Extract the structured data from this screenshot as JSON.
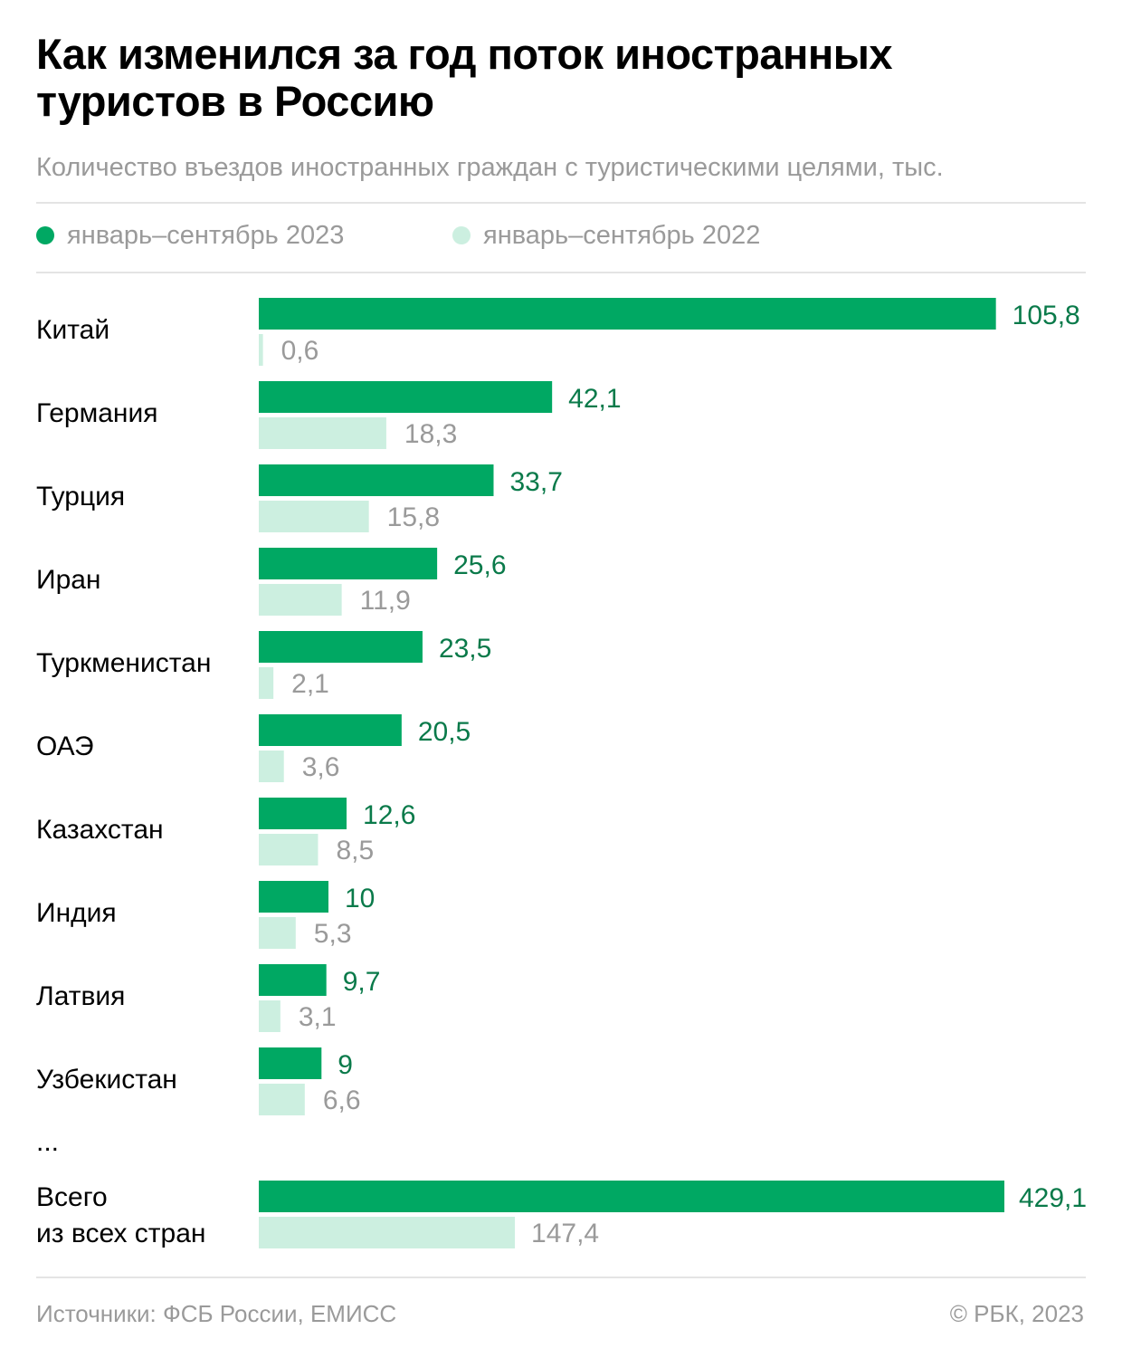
{
  "header": {
    "title": "Как изменился за год поток иностранных туристов в Россию",
    "subtitle": "Количество въездов иностранных граждан с туристическими целями, тыс."
  },
  "legend": {
    "items": [
      {
        "label": "январь–сентябрь 2023",
        "color": "#00a863"
      },
      {
        "label": "январь–сентябрь 2022",
        "color": "#ccefe0"
      }
    ]
  },
  "chart_data": {
    "type": "bar",
    "orientation": "horizontal",
    "categories": [
      "Китай",
      "Германия",
      "Турция",
      "Иран",
      "Туркменистан",
      "ОАЭ",
      "Казахстан",
      "Индия",
      "Латвия",
      "Узбекистан"
    ],
    "series": [
      {
        "name": "январь–сентябрь 2023",
        "values": [
          105.8,
          42.1,
          33.7,
          25.6,
          23.5,
          20.5,
          12.6,
          10,
          9.7,
          9
        ],
        "labels": [
          "105,8",
          "42,1",
          "33,7",
          "25,6",
          "23,5",
          "20,5",
          "12,6",
          "10",
          "9,7",
          "9"
        ]
      },
      {
        "name": "январь–сентябрь 2022",
        "values": [
          0.6,
          18.3,
          15.8,
          11.9,
          2.1,
          3.6,
          8.5,
          5.3,
          3.1,
          6.6
        ],
        "labels": [
          "0,6",
          "18,3",
          "15,8",
          "11,9",
          "2,1",
          "3,6",
          "8,5",
          "5,3",
          "3,1",
          "6,6"
        ]
      }
    ],
    "ellipsis": "...",
    "total": {
      "label_line1": "Всего",
      "label_line2": "из всех стран",
      "values": [
        429.1,
        147.4
      ],
      "labels": [
        "429,1",
        "147,4"
      ]
    },
    "colors": {
      "series2023": "#00a863",
      "series2022": "#ccefe0",
      "label2023": "#0a7a4a",
      "label2022": "#9a9a9a",
      "category": "#000000"
    }
  },
  "footer": {
    "source": "Источники: ФСБ России, ЕМИСС",
    "copyright": "© РБК, 2023"
  }
}
